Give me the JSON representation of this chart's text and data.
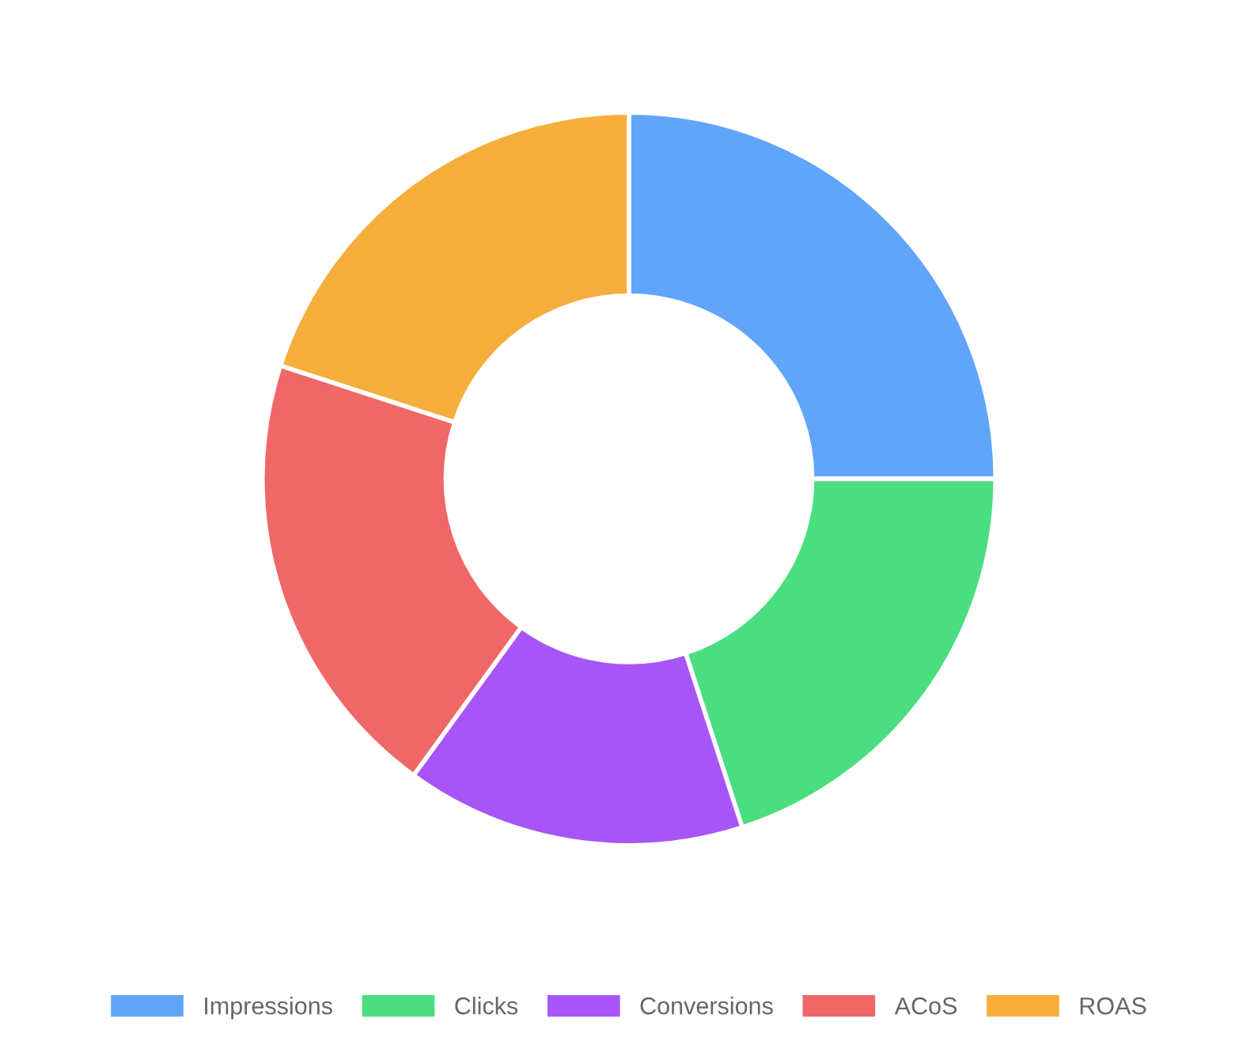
{
  "chart_data": {
    "type": "donut",
    "categories": [
      "Impressions",
      "Clicks",
      "Conversions",
      "ACoS",
      "ROAS"
    ],
    "values": [
      25,
      20,
      15,
      20,
      20
    ],
    "colors": [
      "#60a5fa",
      "#4ade80",
      "#a855f7",
      "#f06767",
      "#f5ae3c"
    ],
    "legend": "bottom"
  }
}
